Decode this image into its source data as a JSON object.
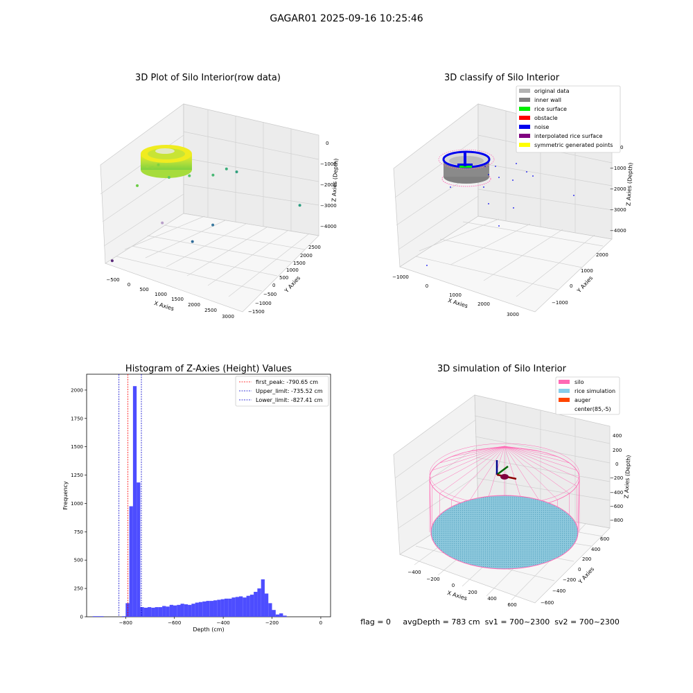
{
  "suptitle": "GAGAR01 2025-09-16 10:25:46",
  "status_text": "flag = 0     avgDepth = 783 cm  sv1 = 700~2300  sv2 = 700~2300",
  "chart_data": [
    {
      "type": "scatter",
      "title": "3D Plot of Silo Interior(row data)",
      "xlabel": "X Axies",
      "ylabel": "Y Axies",
      "zlabel": "Z Axies (Depth)",
      "x_ticks": [
        "−500",
        "0",
        "500",
        "1000",
        "1500",
        "2000",
        "2500",
        "3000"
      ],
      "y_ticks": [
        "−1500",
        "−1000",
        "−500",
        "0",
        "500",
        "1000",
        "1500",
        "2000",
        "2500"
      ],
      "z_ticks": [
        "−4000",
        "−3000",
        "−2000",
        "−1000",
        "0"
      ],
      "outlier_points": [
        {
          "x": 300,
          "y": 250,
          "z": -250
        },
        {
          "x": 400,
          "y": 300,
          "z": -300
        },
        {
          "x": 500,
          "y": 380,
          "z": -200
        },
        {
          "x": 150,
          "y": 100,
          "z": -1000
        },
        {
          "x": 700,
          "y": 500,
          "z": -700
        },
        {
          "x": 900,
          "y": 900,
          "z": -800
        },
        {
          "x": 1200,
          "y": 1300,
          "z": -900
        },
        {
          "x": 1400,
          "y": 1500,
          "z": -700
        },
        {
          "x": 1500,
          "y": 1700,
          "z": -900
        },
        {
          "x": 2800,
          "y": 2300,
          "z": -2100
        },
        {
          "x": 600,
          "y": 400,
          "z": -2500
        },
        {
          "x": 1300,
          "y": 1200,
          "z": -2800
        },
        {
          "x": 1100,
          "y": 800,
          "z": -3300
        },
        {
          "x": -300,
          "y": -200,
          "z": -4000
        }
      ]
    },
    {
      "type": "scatter",
      "title": "3D classify of Silo Interior",
      "xlabel": "X Axies",
      "ylabel": "Y Axies",
      "zlabel": "Z Axies (Depth)",
      "x_ticks": [
        "−1000",
        "0",
        "1000",
        "2000",
        "3000"
      ],
      "y_ticks": [
        "−1000",
        "0",
        "1000",
        "2000"
      ],
      "z_ticks": [
        "−4000",
        "−3000",
        "−2000",
        "−1000",
        "0"
      ],
      "legend": {
        "placement": "top-right",
        "entries": [
          {
            "label": "original data",
            "color": "#b3b3b3"
          },
          {
            "label": "inner wall",
            "color": "#808080"
          },
          {
            "label": "rice surface",
            "color": "#00ee00"
          },
          {
            "label": "obstacle",
            "color": "#ff0000"
          },
          {
            "label": "noise",
            "color": "#0000ee"
          },
          {
            "label": "interpolated rice surface",
            "color": "#800080"
          },
          {
            "label": "symmetric generated points",
            "color": "#ffff00"
          }
        ]
      }
    },
    {
      "type": "bar",
      "title": "Histogram of Z-Axies (Height) Values",
      "xlabel": "Depth (cm)",
      "ylabel": "Frequency",
      "xlim": [
        -960,
        40
      ],
      "ylim": [
        0,
        2140
      ],
      "x_ticks": [
        -800,
        -600,
        -400,
        -200,
        0
      ],
      "y_ticks": [
        0,
        250,
        500,
        750,
        1000,
        1250,
        1500,
        1750,
        2000
      ],
      "bin_width": 15,
      "bins_start": -935,
      "values": [
        5,
        5,
        5,
        0,
        0,
        0,
        0,
        0,
        5,
        120,
        975,
        2035,
        1185,
        85,
        80,
        85,
        80,
        85,
        85,
        95,
        90,
        105,
        100,
        105,
        115,
        110,
        105,
        115,
        125,
        130,
        135,
        140,
        140,
        145,
        150,
        155,
        160,
        160,
        170,
        175,
        180,
        170,
        185,
        195,
        220,
        250,
        330,
        205,
        120,
        60,
        20,
        30,
        10
      ],
      "vlines": [
        {
          "label": "first_peak: -790.65 cm",
          "x": -790.65,
          "color": "#ff0000"
        },
        {
          "label": "Upper_limit: -735.52 cm",
          "x": -735.52,
          "color": "#0000cc"
        },
        {
          "label": "Lower_limit: -827.41 cm",
          "x": -827.41,
          "color": "#0000cc"
        }
      ],
      "bar_color": "#4d4dff",
      "legend_placement": "top-right"
    },
    {
      "type": "scatter",
      "title": "3D simulation of Silo Interior",
      "xlabel": "X Axies",
      "ylabel": "Y Axies",
      "zlabel": "Z Axies (Depth)",
      "x_ticks": [
        "−400",
        "−200",
        "0",
        "200",
        "400",
        "600"
      ],
      "y_ticks": [
        "−600",
        "−400",
        "−200",
        "0",
        "200",
        "400",
        "600"
      ],
      "z_ticks": [
        "−800",
        "−600",
        "−400",
        "−200",
        "0",
        "200",
        "400"
      ],
      "center": [
        85,
        -5
      ],
      "legend": {
        "placement": "top-right",
        "entries": [
          {
            "label": "silo",
            "color": "#ff69b4"
          },
          {
            "label": "rice simulation",
            "color": "#87ceeb"
          },
          {
            "label": "auger",
            "color": "#ff4500"
          },
          {
            "label": "center(85,-5)",
            "color": ""
          }
        ]
      }
    }
  ]
}
